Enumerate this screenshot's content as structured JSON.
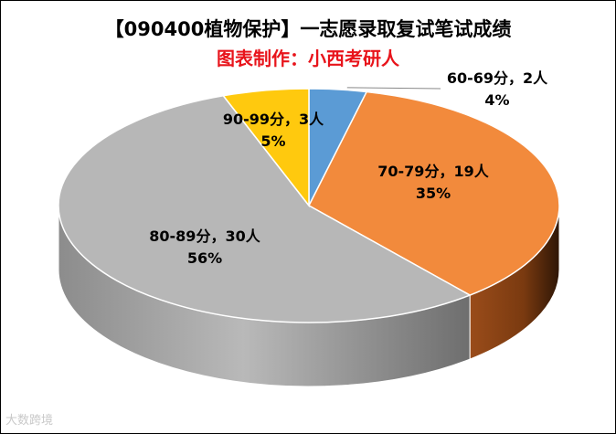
{
  "title": "【090400植物保护】一志愿录取复试笔试成绩",
  "subtitle": "图表制作：小西考研人",
  "watermark": "大数跨境",
  "chart_data": {
    "type": "pie",
    "title": "【090400植物保护】一志愿录取复试笔试成绩",
    "subtitle": "图表制作：小西考研人",
    "slices": [
      {
        "label": "60-69分",
        "count": 2,
        "percent": 4,
        "color": "#5b9bd5",
        "text": "60-69分，2人",
        "pct_text": "4%"
      },
      {
        "label": "70-79分",
        "count": 19,
        "percent": 35,
        "color": "#f28a3c",
        "text": "70-79分，19人",
        "pct_text": "35%"
      },
      {
        "label": "80-89分",
        "count": 30,
        "percent": 56,
        "color": "#b7b7b7",
        "text": "80-89分，30人",
        "pct_text": "56%"
      },
      {
        "label": "90-99分",
        "count": 3,
        "percent": 5,
        "color": "#ffc90e",
        "text": "90-99分，3人",
        "pct_text": "5%"
      }
    ]
  }
}
